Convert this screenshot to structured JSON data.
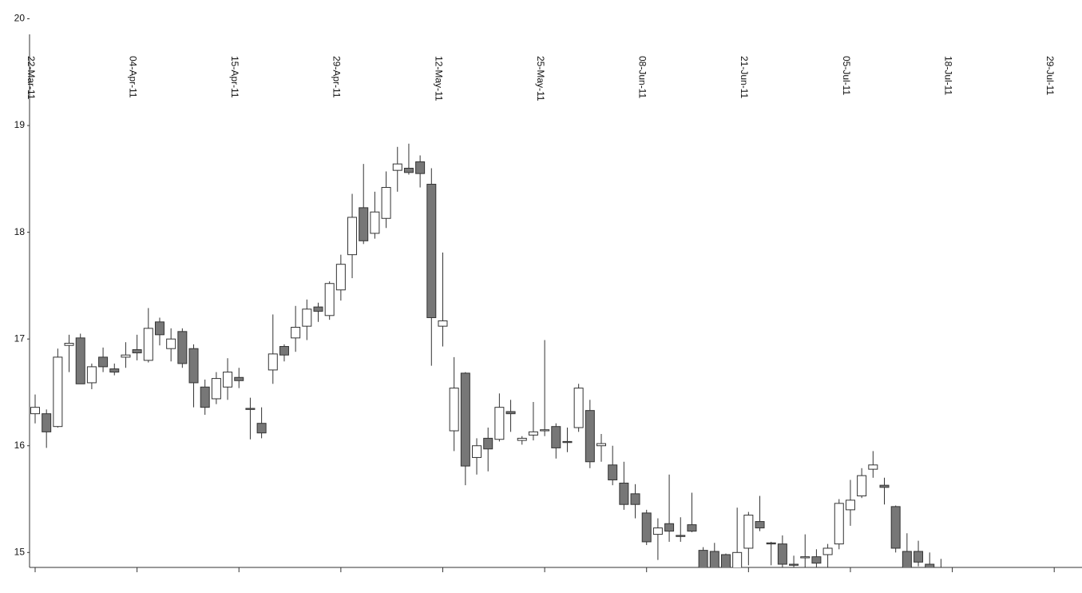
{
  "chart_data": {
    "type": "candlestick",
    "categories": [
      "22-Mar-11",
      null,
      null,
      null,
      null,
      null,
      null,
      null,
      null,
      "04-Apr-11",
      null,
      null,
      null,
      null,
      null,
      null,
      null,
      null,
      "15-Apr-11",
      null,
      null,
      null,
      null,
      null,
      null,
      null,
      null,
      "29-Apr-11",
      null,
      null,
      null,
      null,
      null,
      null,
      null,
      null,
      "12-May-11",
      null,
      null,
      null,
      null,
      null,
      null,
      null,
      null,
      "25-May-11",
      null,
      null,
      null,
      null,
      null,
      null,
      null,
      null,
      "08-Jun-11",
      null,
      null,
      null,
      null,
      null,
      null,
      null,
      null,
      "21-Jun-11",
      null,
      null,
      null,
      null,
      null,
      null,
      null,
      null,
      "05-Jul-11",
      null,
      null,
      null,
      null,
      null,
      null,
      null,
      null,
      "18-Jul-11",
      null,
      null,
      null,
      null,
      null,
      null,
      null,
      null,
      "29-Jul-11"
    ],
    "open": [
      16.3,
      16.3,
      16.18,
      16.94,
      17.01,
      16.59,
      16.83,
      16.72,
      16.83,
      16.9,
      16.8,
      17.16,
      16.91,
      17.07,
      16.91,
      16.55,
      16.44,
      16.55,
      16.64,
      16.35,
      16.21,
      16.71,
      16.93,
      17.01,
      17.12,
      17.3,
      17.22,
      17.46,
      17.79,
      18.23,
      17.99,
      18.13,
      18.58,
      18.6,
      18.66,
      18.45,
      17.12,
      16.14,
      16.68,
      15.89,
      16.07,
      16.06,
      16.32,
      16.05,
      16.1,
      16.14,
      16.18,
      16.04,
      16.17,
      16.33,
      16.0,
      15.82,
      15.65,
      15.55,
      15.37,
      15.17,
      15.27,
      15.16,
      15.26,
      15.02,
      15.01,
      14.98,
      14.84,
      15.04,
      15.29,
      15.09,
      15.08,
      14.89,
      14.95,
      14.96,
      14.98,
      15.08,
      15.4,
      15.53,
      15.78,
      15.63,
      15.43,
      15.01,
      15.01,
      14.89,
      14.84,
      null,
      null,
      null,
      null,
      null,
      null,
      null,
      null,
      null,
      null
    ],
    "high": [
      16.48,
      16.34,
      16.91,
      17.04,
      17.05,
      16.77,
      16.92,
      16.77,
      16.97,
      17.04,
      17.29,
      17.2,
      17.1,
      17.1,
      16.95,
      16.62,
      16.69,
      16.82,
      16.73,
      16.45,
      16.36,
      17.23,
      16.95,
      17.31,
      17.37,
      17.34,
      17.54,
      17.79,
      18.36,
      18.64,
      18.38,
      18.57,
      18.8,
      18.83,
      18.72,
      18.6,
      17.81,
      16.83,
      16.69,
      16.07,
      16.17,
      16.49,
      16.43,
      16.09,
      16.41,
      16.99,
      16.21,
      16.17,
      16.58,
      16.43,
      16.11,
      16.0,
      15.85,
      15.64,
      15.4,
      15.32,
      15.73,
      15.33,
      15.56,
      15.05,
      15.09,
      14.99,
      15.42,
      15.38,
      15.53,
      15.1,
      15.16,
      14.97,
      15.17,
      15.03,
      15.08,
      15.5,
      15.68,
      15.79,
      15.95,
      15.7,
      15.44,
      15.18,
      15.11,
      15.0,
      14.94,
      null,
      null,
      null,
      null,
      null,
      null,
      null,
      null,
      null,
      null
    ],
    "low": [
      16.21,
      15.98,
      16.17,
      16.69,
      16.58,
      16.53,
      16.69,
      16.66,
      16.73,
      16.8,
      16.78,
      16.94,
      16.79,
      16.73,
      16.36,
      16.29,
      16.39,
      16.43,
      16.54,
      16.06,
      16.07,
      16.58,
      16.79,
      16.88,
      16.99,
      17.16,
      17.18,
      17.36,
      17.57,
      17.89,
      17.94,
      18.04,
      18.38,
      18.54,
      18.42,
      16.75,
      16.93,
      15.95,
      15.63,
      15.73,
      15.76,
      16.04,
      16.13,
      16.01,
      16.05,
      16.09,
      15.88,
      15.94,
      16.13,
      15.79,
      15.85,
      15.63,
      15.4,
      15.32,
      15.07,
      14.93,
      15.1,
      15.1,
      15.19,
      14.75,
      14.78,
      14.8,
      14.8,
      14.88,
      15.2,
      14.88,
      14.85,
      14.86,
      14.86,
      14.86,
      14.86,
      15.03,
      15.25,
      15.51,
      15.7,
      15.45,
      15.0,
      14.75,
      14.87,
      14.8,
      14.8,
      null,
      null,
      null,
      null,
      null,
      null,
      null,
      null,
      null,
      null
    ],
    "close": [
      16.36,
      16.13,
      16.83,
      16.96,
      16.58,
      16.74,
      16.74,
      16.69,
      16.85,
      16.87,
      17.1,
      17.04,
      17.0,
      16.77,
      16.59,
      16.36,
      16.63,
      16.69,
      16.61,
      16.34,
      16.12,
      16.86,
      16.85,
      17.11,
      17.28,
      17.26,
      17.52,
      17.7,
      18.14,
      17.92,
      18.19,
      18.42,
      18.64,
      18.56,
      18.55,
      17.2,
      17.17,
      16.54,
      15.81,
      16.0,
      15.97,
      16.36,
      16.3,
      16.07,
      16.13,
      16.15,
      15.98,
      16.03,
      16.54,
      15.85,
      16.02,
      15.68,
      15.45,
      15.45,
      15.1,
      15.23,
      15.2,
      15.15,
      15.2,
      14.8,
      14.82,
      14.82,
      15.0,
      15.35,
      15.23,
      15.08,
      14.89,
      14.88,
      14.96,
      14.9,
      15.04,
      15.46,
      15.49,
      15.72,
      15.82,
      15.61,
      15.04,
      14.8,
      14.91,
      14.84,
      14.82,
      null,
      null,
      null,
      null,
      null,
      null,
      null,
      null,
      null,
      null
    ],
    "up_color": "#ffffff",
    "down_color": "#777777",
    "edge_color": "#333333",
    "ylim": [
      14.86,
      20
    ],
    "yticks": [
      15,
      16,
      17,
      18,
      19,
      20
    ]
  }
}
